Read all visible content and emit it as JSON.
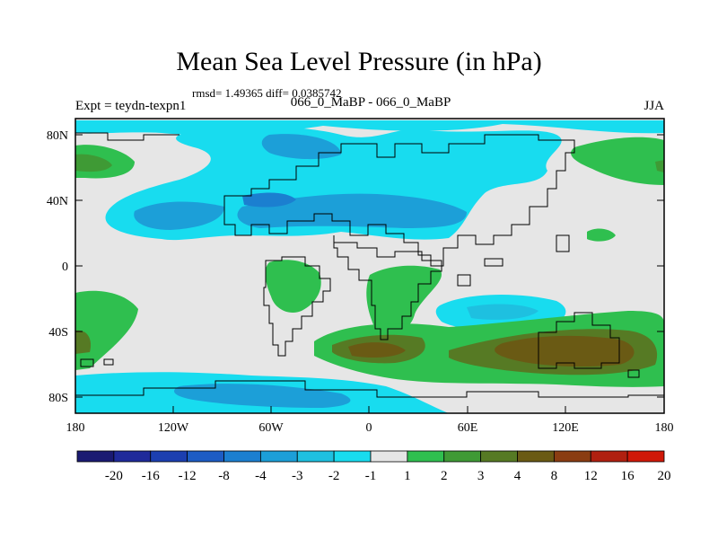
{
  "title": "Mean Sea Level Pressure (in hPa)",
  "stats": "rmsd= 1.49365 diff= 0.0385742",
  "experiment": "Expt = teydn-texpn1",
  "comparison": "066_0_MaBP - 066_0_MaBP",
  "season": "JJA",
  "axes": {
    "y_ticks": [
      "80N",
      "40N",
      "0",
      "40S",
      "80S"
    ],
    "x_ticks": [
      "180",
      "120W",
      "60W",
      "0",
      "60E",
      "120E",
      "180"
    ]
  },
  "colorbar": {
    "labels": [
      "-20",
      "-16",
      "-12",
      "-8",
      "-4",
      "-3",
      "-2",
      "-1",
      "1",
      "2",
      "3",
      "4",
      "8",
      "12",
      "16",
      "20"
    ],
    "colors": [
      "#1a1a72",
      "#1f2a9a",
      "#1c3fb0",
      "#1d5cc4",
      "#1b7fd0",
      "#1c9fd8",
      "#1ec0e0",
      "#18dcef",
      "#e6e6e6",
      "#2fbf4f",
      "#3f9a35",
      "#567a24",
      "#6a5a14",
      "#8a3d12",
      "#b02010",
      "#d01808"
    ]
  }
}
